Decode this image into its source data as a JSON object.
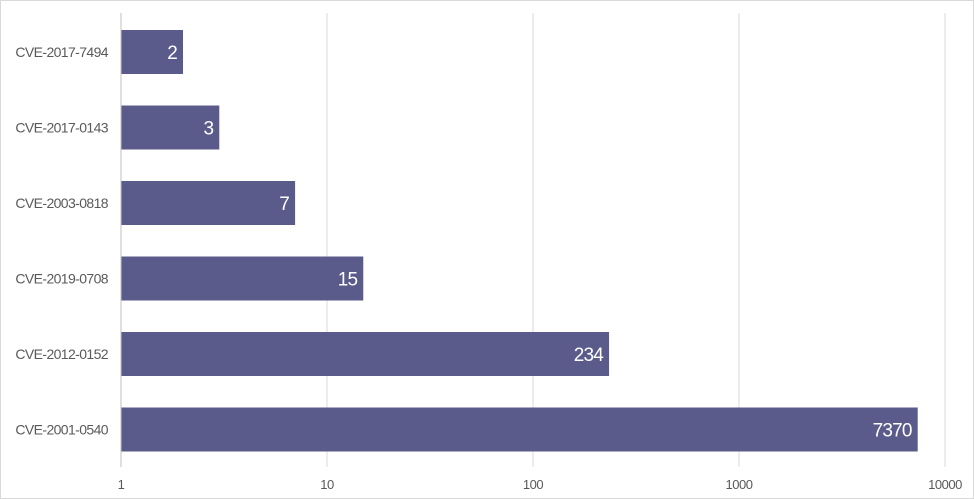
{
  "chart_data": {
    "type": "bar",
    "orientation": "horizontal",
    "x_scale": "log",
    "xlim": [
      1,
      10000
    ],
    "x_ticks": [
      "1",
      "10",
      "100",
      "1000",
      "10000"
    ],
    "grid": true,
    "title": "",
    "xlabel": "",
    "ylabel": "",
    "categories": [
      "CVE-2017-7494",
      "CVE-2017-0143",
      "CVE-2003-0818",
      "CVE-2019-0708",
      "CVE-2012-0152",
      "CVE-2001-0540"
    ],
    "values": [
      2,
      3,
      7,
      15,
      234,
      7370
    ],
    "data_labels": [
      "2",
      "3",
      "7",
      "15",
      "234",
      "7370"
    ],
    "bar_color": "#5b5b8b",
    "label_color": "#ffffff"
  }
}
